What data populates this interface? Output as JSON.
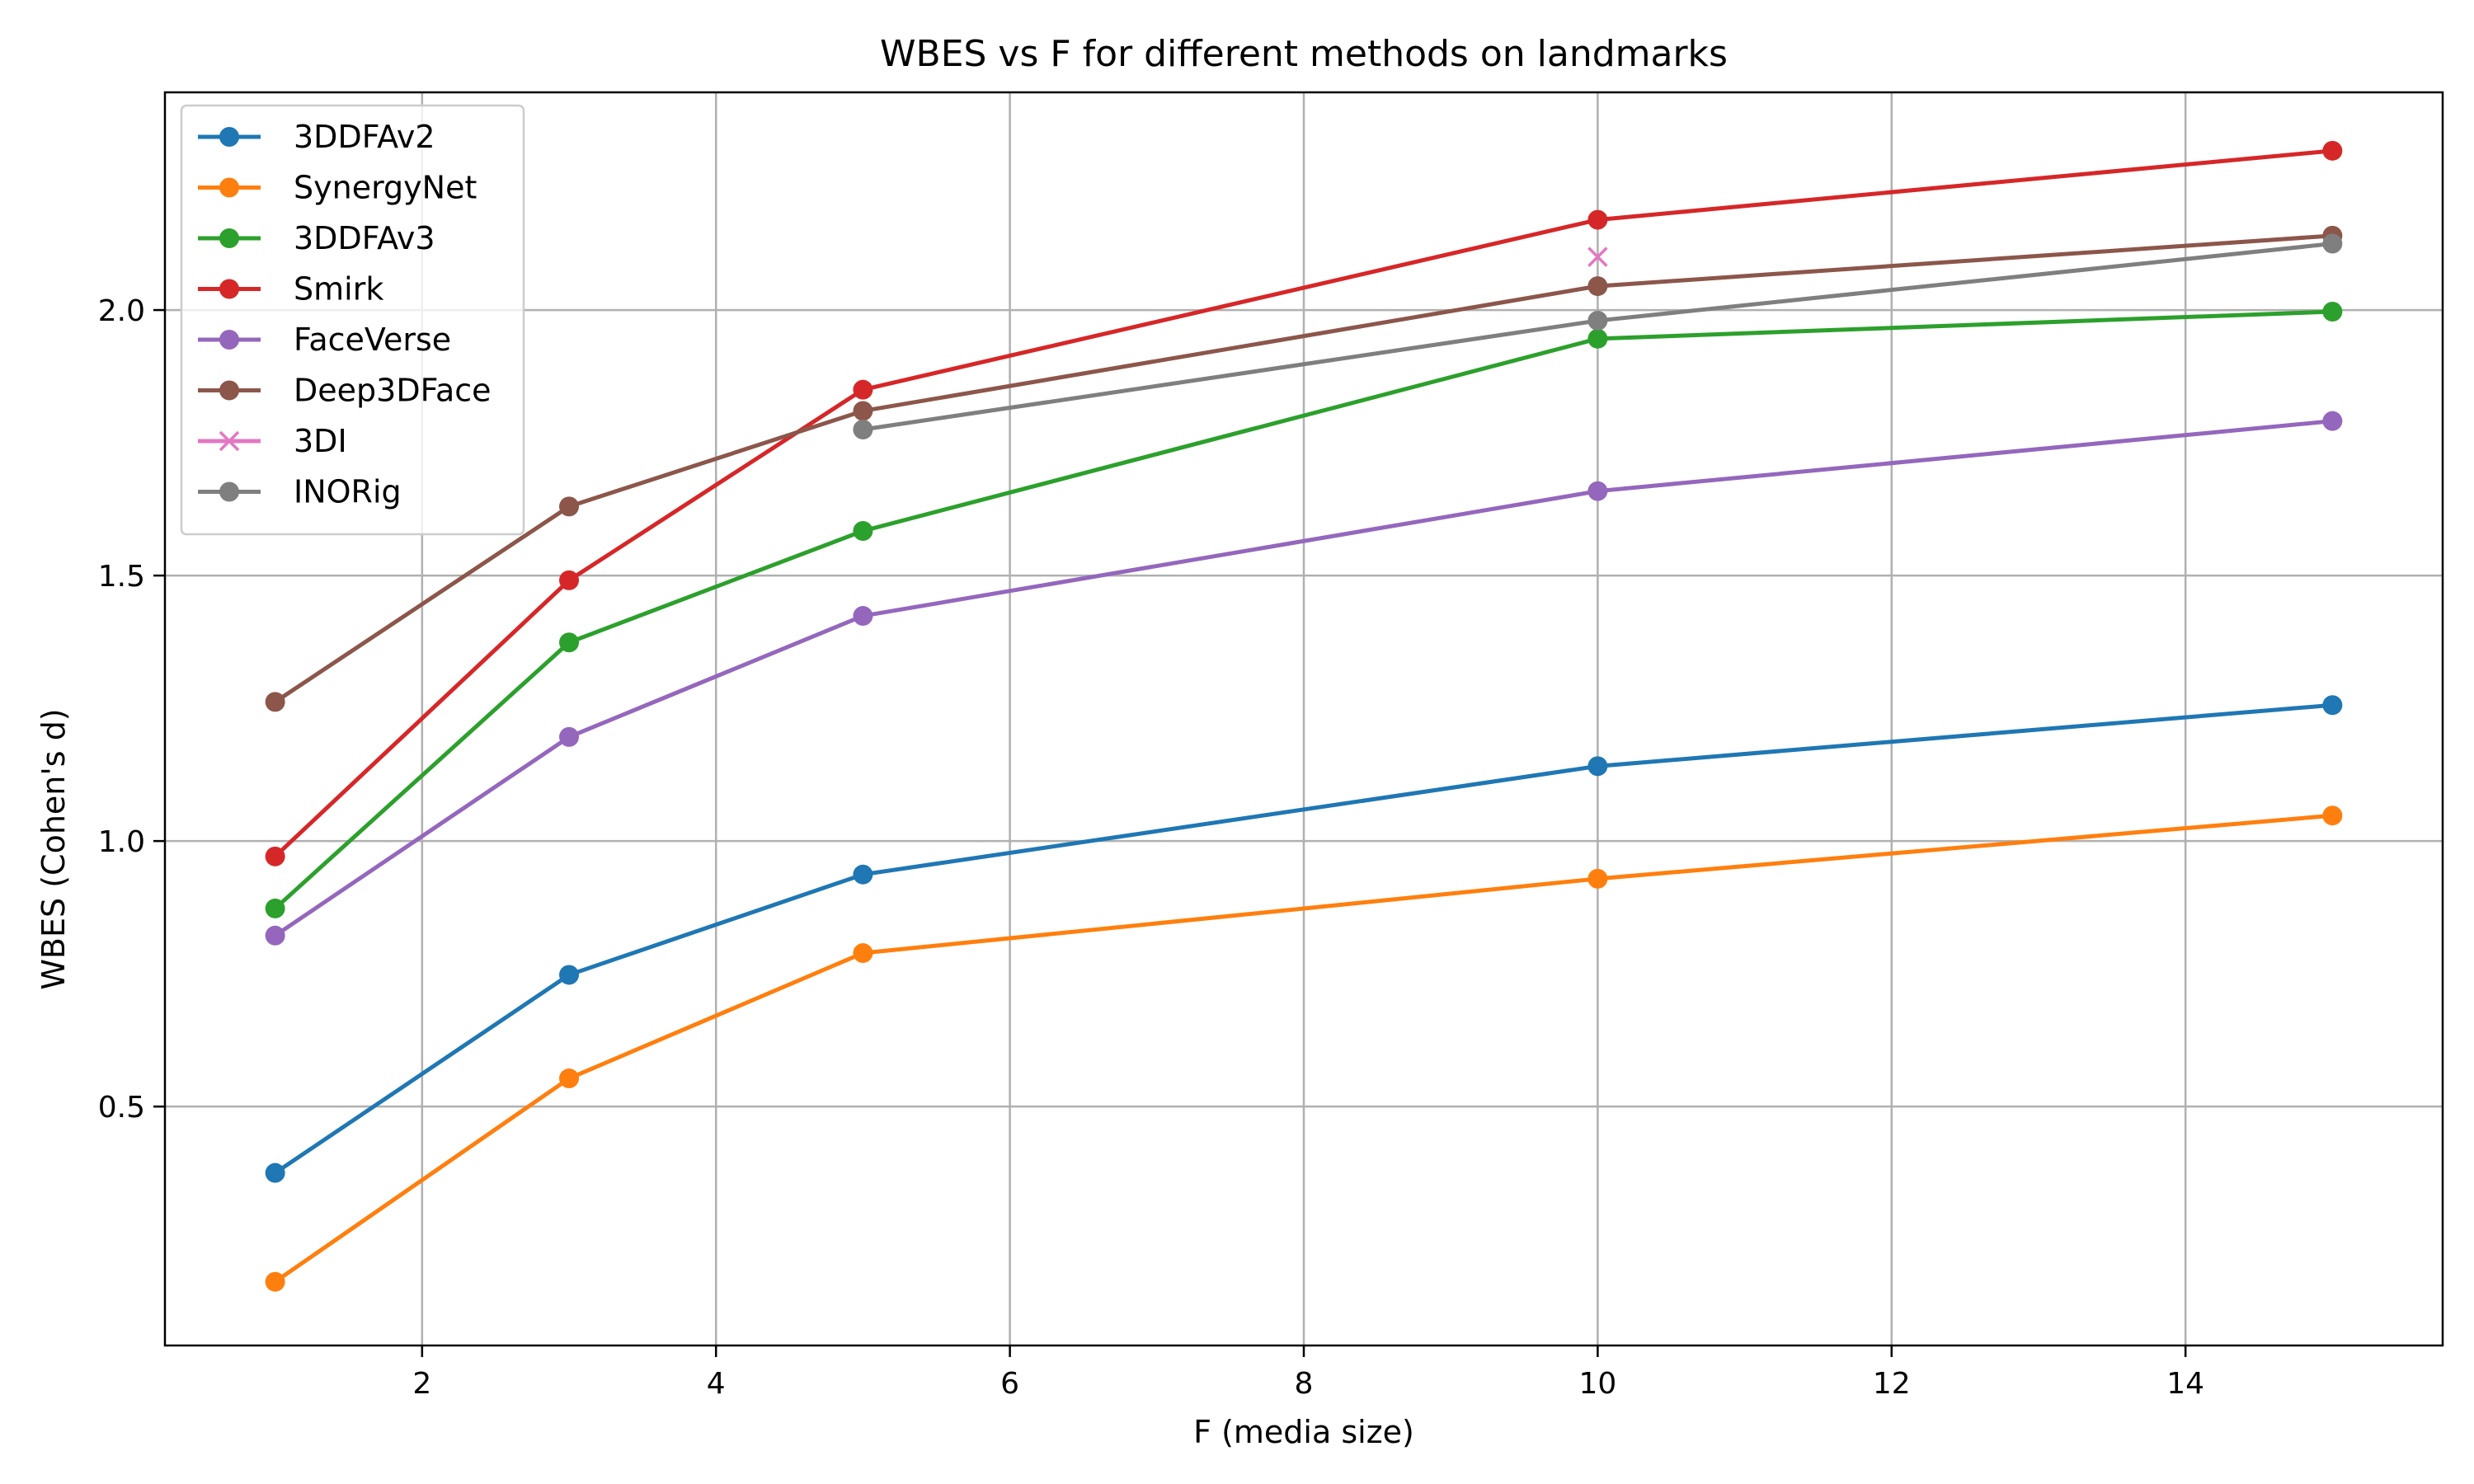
{
  "chart_data": {
    "type": "line",
    "title": "WBES vs F for different methods on landmarks",
    "xlabel": "F (media size)",
    "ylabel": "WBES (Cohen's d)",
    "xlim": [
      0.25,
      15.75
    ],
    "ylim": [
      0.05,
      2.41
    ],
    "xticks": [
      2,
      4,
      6,
      8,
      10,
      12,
      14
    ],
    "xtick_labels": [
      "2",
      "4",
      "6",
      "8",
      "10",
      "12",
      "14"
    ],
    "yticks": [
      0.5,
      1.0,
      1.5,
      2.0
    ],
    "ytick_labels": [
      "0.5",
      "1.0",
      "1.5",
      "2.0"
    ],
    "grid": true,
    "legend_position": "top-left",
    "series": [
      {
        "name": "3DDFAv2",
        "color": "#1f77b4",
        "marker": "circle",
        "x": [
          1,
          3,
          5,
          10,
          15
        ],
        "y": [
          0.375,
          0.748,
          0.937,
          1.141,
          1.256
        ]
      },
      {
        "name": "SynergyNet",
        "color": "#ff7f0e",
        "marker": "circle",
        "x": [
          1,
          3,
          5,
          10,
          15
        ],
        "y": [
          0.17,
          0.553,
          0.789,
          0.929,
          1.048
        ]
      },
      {
        "name": "3DDFAv3",
        "color": "#2ca02c",
        "marker": "circle",
        "x": [
          1,
          3,
          5,
          10,
          15
        ],
        "y": [
          0.873,
          1.374,
          1.584,
          1.946,
          1.997
        ]
      },
      {
        "name": "Smirk",
        "color": "#d62728",
        "marker": "circle",
        "x": [
          1,
          3,
          5,
          10,
          15
        ],
        "y": [
          0.971,
          1.491,
          1.85,
          2.17,
          2.3
        ]
      },
      {
        "name": "FaceVerse",
        "color": "#9467bd",
        "marker": "circle",
        "x": [
          1,
          3,
          5,
          10,
          15
        ],
        "y": [
          0.822,
          1.196,
          1.424,
          1.659,
          1.791
        ]
      },
      {
        "name": "Deep3DFace",
        "color": "#8c564b",
        "marker": "circle",
        "x": [
          1,
          3,
          5,
          10,
          15
        ],
        "y": [
          1.262,
          1.63,
          1.81,
          2.045,
          2.14
        ]
      },
      {
        "name": "3DI",
        "color": "#e377c2",
        "marker": "x",
        "x": [
          10
        ],
        "y": [
          2.1
        ]
      },
      {
        "name": "INORig",
        "color": "#7f7f7f",
        "marker": "circle",
        "x": [
          5,
          10,
          15
        ],
        "y": [
          1.775,
          1.98,
          2.125
        ]
      }
    ]
  }
}
